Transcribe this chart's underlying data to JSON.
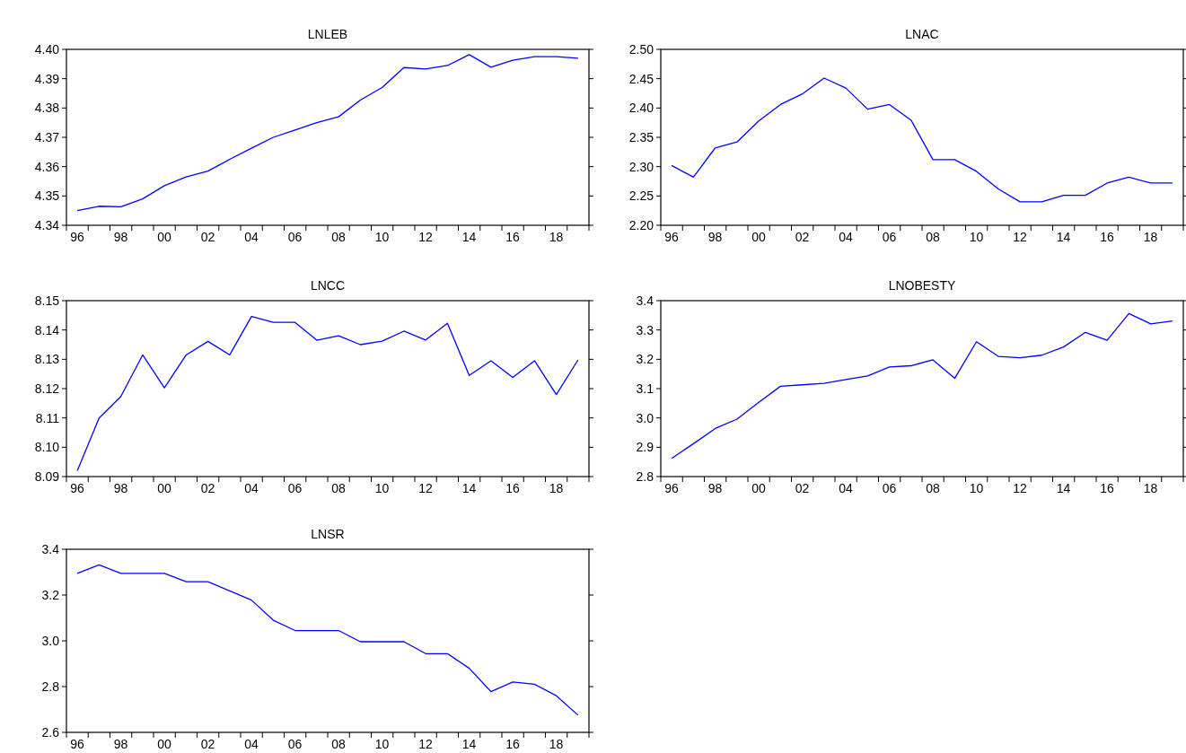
{
  "chart_data": [
    {
      "type": "line",
      "title": "LNLEB",
      "x": [
        1996,
        1997,
        1998,
        1999,
        2000,
        2001,
        2002,
        2003,
        2004,
        2005,
        2006,
        2007,
        2008,
        2009,
        2010,
        2011,
        2012,
        2013,
        2014,
        2015,
        2016,
        2017,
        2018,
        2019
      ],
      "series": [
        {
          "color": "#0000ff",
          "values": [
            4.345,
            4.3465,
            4.3463,
            4.349,
            4.3535,
            4.3565,
            4.3585,
            4.3625,
            4.3663,
            4.37,
            4.3725,
            4.375,
            4.377,
            4.3827,
            4.387,
            4.3938,
            4.3933,
            4.3945,
            4.3982,
            4.3939,
            4.3963,
            4.3975,
            4.3975,
            4.397
          ]
        }
      ],
      "xlim": [
        1995.5,
        2019.5
      ],
      "xticks": [
        {
          "value": 1996,
          "label": "96"
        },
        {
          "value": 1998,
          "label": "98"
        },
        {
          "value": 2000,
          "label": "00"
        },
        {
          "value": 2002,
          "label": "02"
        },
        {
          "value": 2004,
          "label": "04"
        },
        {
          "value": 2006,
          "label": "06"
        },
        {
          "value": 2008,
          "label": "08"
        },
        {
          "value": 2010,
          "label": "10"
        },
        {
          "value": 2012,
          "label": "12"
        },
        {
          "value": 2014,
          "label": "14"
        },
        {
          "value": 2016,
          "label": "16"
        },
        {
          "value": 2018,
          "label": "18"
        }
      ],
      "ylim": [
        4.34,
        4.4
      ],
      "yticks": [
        4.34,
        4.35,
        4.36,
        4.37,
        4.38,
        4.39,
        {
          "value": 4.4,
          "label": "4.40"
        }
      ],
      "grid": false,
      "line_style": "solid",
      "marker": "none"
    },
    {
      "type": "line",
      "title": "LNAC",
      "x": [
        1996,
        1997,
        1998,
        1999,
        2000,
        2001,
        2002,
        2003,
        2004,
        2005,
        2006,
        2007,
        2008,
        2009,
        2010,
        2011,
        2012,
        2013,
        2014,
        2015,
        2016,
        2017,
        2018,
        2019
      ],
      "series": [
        {
          "color": "#0000ff",
          "values": [
            2.302,
            2.282,
            2.332,
            2.342,
            2.378,
            2.406,
            2.424,
            2.451,
            2.434,
            2.398,
            2.406,
            2.379,
            2.312,
            2.312,
            2.292,
            2.262,
            2.24,
            2.24,
            2.251,
            2.251,
            2.272,
            2.282,
            2.272,
            2.272
          ]
        }
      ],
      "xlim": [
        1995.5,
        2019.5
      ],
      "xticks": [
        {
          "value": 1996,
          "label": "96"
        },
        {
          "value": 1998,
          "label": "98"
        },
        {
          "value": 2000,
          "label": "00"
        },
        {
          "value": 2002,
          "label": "02"
        },
        {
          "value": 2004,
          "label": "04"
        },
        {
          "value": 2006,
          "label": "06"
        },
        {
          "value": 2008,
          "label": "08"
        },
        {
          "value": 2010,
          "label": "10"
        },
        {
          "value": 2012,
          "label": "12"
        },
        {
          "value": 2014,
          "label": "14"
        },
        {
          "value": 2016,
          "label": "16"
        },
        {
          "value": 2018,
          "label": "18"
        }
      ],
      "ylim": [
        2.2,
        2.5
      ],
      "yticks": [
        {
          "value": 2.2,
          "label": "2.20"
        },
        2.25,
        {
          "value": 2.3,
          "label": "2.30"
        },
        2.35,
        {
          "value": 2.4,
          "label": "2.40"
        },
        2.45,
        {
          "value": 2.5,
          "label": "2.50"
        }
      ],
      "grid": false,
      "line_style": "solid",
      "marker": "none"
    },
    {
      "type": "line",
      "title": "LNCC",
      "x": [
        1996,
        1997,
        1998,
        1999,
        2000,
        2001,
        2002,
        2003,
        2004,
        2005,
        2006,
        2007,
        2008,
        2009,
        2010,
        2011,
        2012,
        2013,
        2014,
        2015,
        2016,
        2017,
        2018,
        2019
      ],
      "series": [
        {
          "color": "#0000ff",
          "values": [
            8.092,
            8.11,
            8.1173,
            8.1315,
            8.1203,
            8.1315,
            8.1361,
            8.1315,
            8.1446,
            8.1426,
            8.1426,
            8.1365,
            8.138,
            8.135,
            8.1362,
            8.1396,
            8.1366,
            8.1423,
            8.1245,
            8.1295,
            8.1238,
            8.1295,
            8.118,
            8.1298
          ]
        }
      ],
      "xlim": [
        1995.5,
        2019.5
      ],
      "xticks": [
        {
          "value": 1996,
          "label": "96"
        },
        {
          "value": 1998,
          "label": "98"
        },
        {
          "value": 2000,
          "label": "00"
        },
        {
          "value": 2002,
          "label": "02"
        },
        {
          "value": 2004,
          "label": "04"
        },
        {
          "value": 2006,
          "label": "06"
        },
        {
          "value": 2008,
          "label": "08"
        },
        {
          "value": 2010,
          "label": "10"
        },
        {
          "value": 2012,
          "label": "12"
        },
        {
          "value": 2014,
          "label": "14"
        },
        {
          "value": 2016,
          "label": "16"
        },
        {
          "value": 2018,
          "label": "18"
        }
      ],
      "ylim": [
        8.09,
        8.15
      ],
      "yticks": [
        8.09,
        {
          "value": 8.1,
          "label": "8.10"
        },
        8.11,
        8.12,
        8.13,
        8.14,
        8.15
      ],
      "grid": false,
      "line_style": "solid",
      "marker": "none"
    },
    {
      "type": "line",
      "title": "LNOBESTY",
      "x": [
        1996,
        1997,
        1998,
        1999,
        2000,
        2001,
        2002,
        2003,
        2004,
        2005,
        2006,
        2007,
        2008,
        2009,
        2010,
        2011,
        2012,
        2013,
        2014,
        2015,
        2016,
        2017,
        2018,
        2019
      ],
      "series": [
        {
          "color": "#0000ff",
          "values": [
            2.862,
            2.912,
            2.964,
            2.996,
            3.053,
            3.108,
            3.113,
            3.118,
            3.131,
            3.143,
            3.174,
            3.178,
            3.198,
            3.135,
            3.26,
            3.21,
            3.205,
            3.214,
            3.242,
            3.292,
            3.265,
            3.356,
            3.321,
            3.331
          ]
        }
      ],
      "xlim": [
        1995.5,
        2019.5
      ],
      "xticks": [
        {
          "value": 1996,
          "label": "96"
        },
        {
          "value": 1998,
          "label": "98"
        },
        {
          "value": 2000,
          "label": "00"
        },
        {
          "value": 2002,
          "label": "02"
        },
        {
          "value": 2004,
          "label": "04"
        },
        {
          "value": 2006,
          "label": "06"
        },
        {
          "value": 2008,
          "label": "08"
        },
        {
          "value": 2010,
          "label": "10"
        },
        {
          "value": 2012,
          "label": "12"
        },
        {
          "value": 2014,
          "label": "14"
        },
        {
          "value": 2016,
          "label": "16"
        },
        {
          "value": 2018,
          "label": "18"
        }
      ],
      "ylim": [
        2.8,
        3.4
      ],
      "yticks": [
        2.8,
        2.9,
        {
          "value": 3,
          "label": "3.0"
        },
        3.1,
        3.2,
        3.3,
        3.4
      ],
      "grid": false,
      "line_style": "solid",
      "marker": "none"
    },
    {
      "type": "line",
      "title": "LNSR",
      "x": [
        1996,
        1997,
        1998,
        1999,
        2000,
        2001,
        2002,
        2003,
        2004,
        2005,
        2006,
        2007,
        2008,
        2009,
        2010,
        2011,
        2012,
        2013,
        2014,
        2015,
        2016,
        2017,
        2018,
        2019
      ],
      "series": [
        {
          "color": "#0000ff",
          "values": [
            3.295,
            3.332,
            3.295,
            3.295,
            3.295,
            3.258,
            3.258,
            3.218,
            3.178,
            3.09,
            3.045,
            3.045,
            3.045,
            2.996,
            2.996,
            2.996,
            2.944,
            2.944,
            2.88,
            2.778,
            2.82,
            2.81,
            2.76,
            2.675
          ]
        }
      ],
      "xlim": [
        1995.5,
        2019.5
      ],
      "xticks": [
        {
          "value": 1996,
          "label": "96"
        },
        {
          "value": 1998,
          "label": "98"
        },
        {
          "value": 2000,
          "label": "00"
        },
        {
          "value": 2002,
          "label": "02"
        },
        {
          "value": 2004,
          "label": "04"
        },
        {
          "value": 2006,
          "label": "06"
        },
        {
          "value": 2008,
          "label": "08"
        },
        {
          "value": 2010,
          "label": "10"
        },
        {
          "value": 2012,
          "label": "12"
        },
        {
          "value": 2014,
          "label": "14"
        },
        {
          "value": 2016,
          "label": "16"
        },
        {
          "value": 2018,
          "label": "18"
        }
      ],
      "ylim": [
        2.6,
        3.4
      ],
      "yticks": [
        2.6,
        2.8,
        {
          "value": 3,
          "label": "3.0"
        },
        3.2,
        3.4
      ],
      "grid": false,
      "line_style": "solid",
      "marker": "none"
    }
  ]
}
